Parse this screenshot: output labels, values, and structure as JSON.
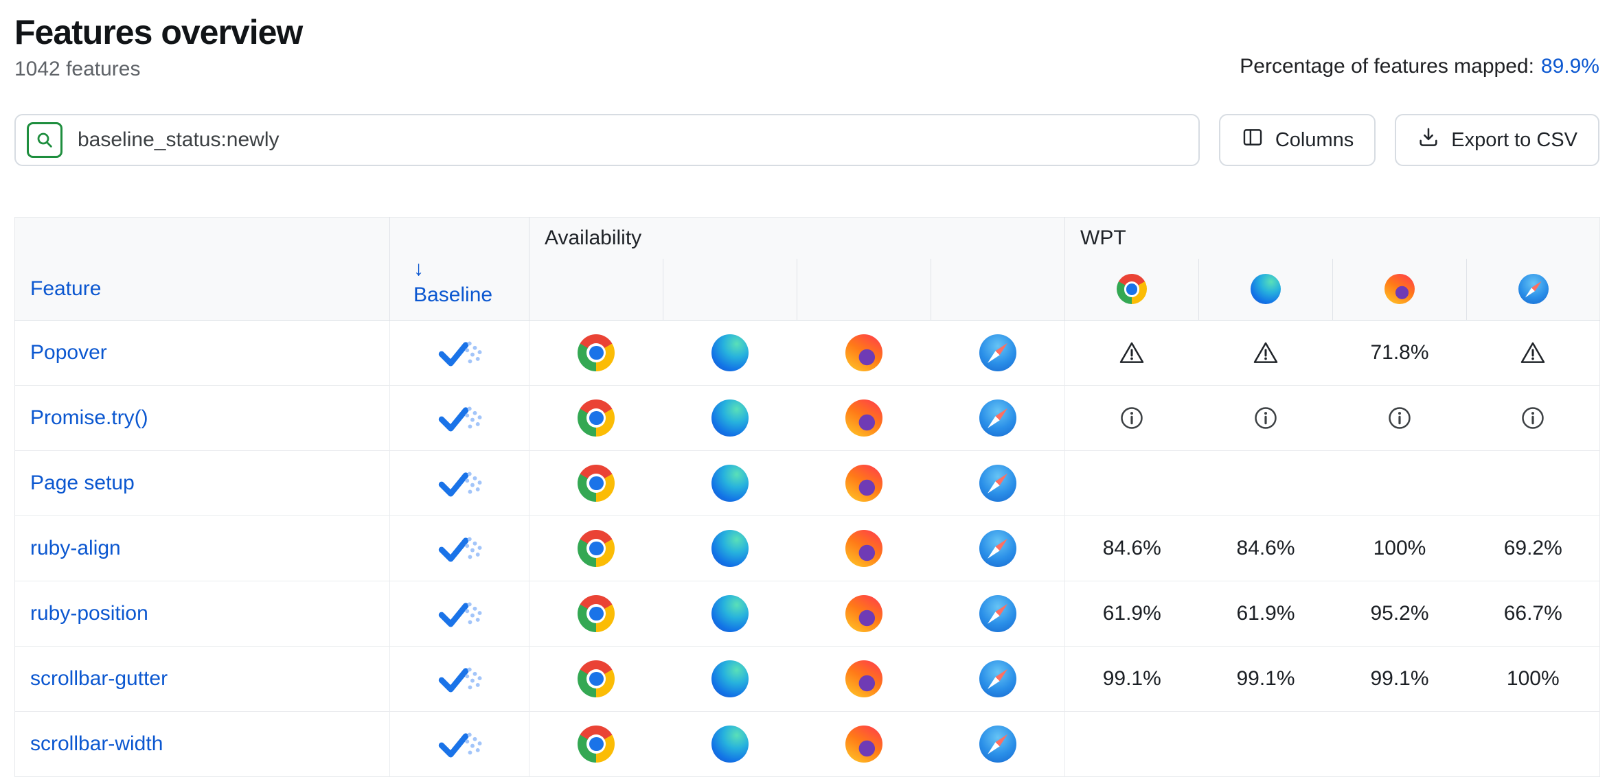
{
  "page": {
    "title": "Features overview",
    "feature_count": "1042 features",
    "mapped": {
      "label": "Percentage of features mapped:",
      "value": "89.9%"
    }
  },
  "toolbar": {
    "search": {
      "value": "baseline_status:newly"
    },
    "columns_button": "Columns",
    "export_button": "Export to CSV"
  },
  "colors": {
    "link_blue": "#0b57d0",
    "baseline_newly_blue": "#1a73e8",
    "search_icon_green": "#1e8e3e"
  },
  "table": {
    "headers": {
      "feature": "Feature",
      "baseline": "Baseline",
      "baseline_sort_arrow": "↓",
      "availability_group": "Availability",
      "wpt_group": "WPT"
    },
    "browsers": [
      "chrome",
      "edge",
      "firefox",
      "safari"
    ],
    "rows": [
      {
        "feature": "Popover",
        "baseline_status": "newly",
        "availability": [
          "chrome",
          "edge",
          "firefox",
          "safari"
        ],
        "wpt": [
          {
            "type": "warning"
          },
          {
            "type": "warning"
          },
          {
            "type": "value",
            "value": "71.8%"
          },
          {
            "type": "warning"
          }
        ]
      },
      {
        "feature": "Promise.try()",
        "baseline_status": "newly",
        "availability": [
          "chrome",
          "edge",
          "firefox",
          "safari"
        ],
        "wpt": [
          {
            "type": "info"
          },
          {
            "type": "info"
          },
          {
            "type": "info"
          },
          {
            "type": "info"
          }
        ]
      },
      {
        "feature": "Page setup",
        "baseline_status": "newly",
        "availability": [
          "chrome",
          "edge",
          "firefox",
          "safari"
        ],
        "wpt": [
          {
            "type": "none"
          },
          {
            "type": "none"
          },
          {
            "type": "none"
          },
          {
            "type": "none"
          }
        ]
      },
      {
        "feature": "ruby-align",
        "baseline_status": "newly",
        "availability": [
          "chrome",
          "edge",
          "firefox",
          "safari"
        ],
        "wpt": [
          {
            "type": "value",
            "value": "84.6%"
          },
          {
            "type": "value",
            "value": "84.6%"
          },
          {
            "type": "value",
            "value": "100%"
          },
          {
            "type": "value",
            "value": "69.2%"
          }
        ]
      },
      {
        "feature": "ruby-position",
        "baseline_status": "newly",
        "availability": [
          "chrome",
          "edge",
          "firefox",
          "safari"
        ],
        "wpt": [
          {
            "type": "value",
            "value": "61.9%"
          },
          {
            "type": "value",
            "value": "61.9%"
          },
          {
            "type": "value",
            "value": "95.2%"
          },
          {
            "type": "value",
            "value": "66.7%"
          }
        ]
      },
      {
        "feature": "scrollbar-gutter",
        "baseline_status": "newly",
        "availability": [
          "chrome",
          "edge",
          "firefox",
          "safari"
        ],
        "wpt": [
          {
            "type": "value",
            "value": "99.1%"
          },
          {
            "type": "value",
            "value": "99.1%"
          },
          {
            "type": "value",
            "value": "99.1%"
          },
          {
            "type": "value",
            "value": "100%"
          }
        ]
      },
      {
        "feature": "scrollbar-width",
        "baseline_status": "newly",
        "availability": [
          "chrome",
          "edge",
          "firefox",
          "safari"
        ],
        "wpt": [
          {
            "type": "none"
          },
          {
            "type": "none"
          },
          {
            "type": "none"
          },
          {
            "type": "none"
          }
        ]
      }
    ]
  }
}
